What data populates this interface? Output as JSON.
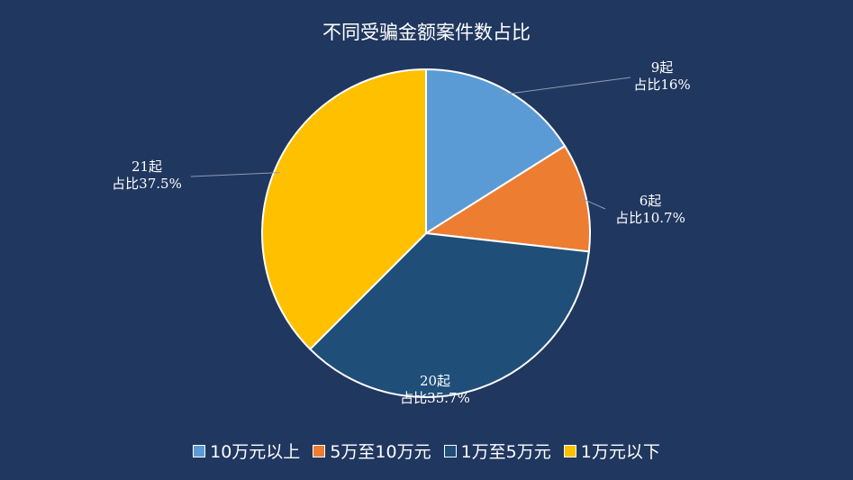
{
  "chart_data": {
    "type": "pie",
    "title": "不同受骗金额案件数占比",
    "categories": [
      "10万元以上",
      "5万至10万元",
      "1万至5万元",
      "1万元以下"
    ],
    "values": [
      9,
      6,
      20,
      21
    ],
    "percentages": [
      "16%",
      "10.7%",
      "35.7%",
      "37.5%"
    ],
    "data_labels": [
      {
        "count": "9起",
        "share": "占比16%"
      },
      {
        "count": "6起",
        "share": "占比10.7%"
      },
      {
        "count": "20起",
        "share": "占比35.7%"
      },
      {
        "count": "21起",
        "share": "占比37.5%"
      }
    ],
    "colors": [
      "#5b9bd5",
      "#ed7d31",
      "#1f4e79",
      "#ffc000"
    ],
    "legend_position": "bottom",
    "start_angle": "12 o'clock",
    "direction": "clockwise"
  }
}
